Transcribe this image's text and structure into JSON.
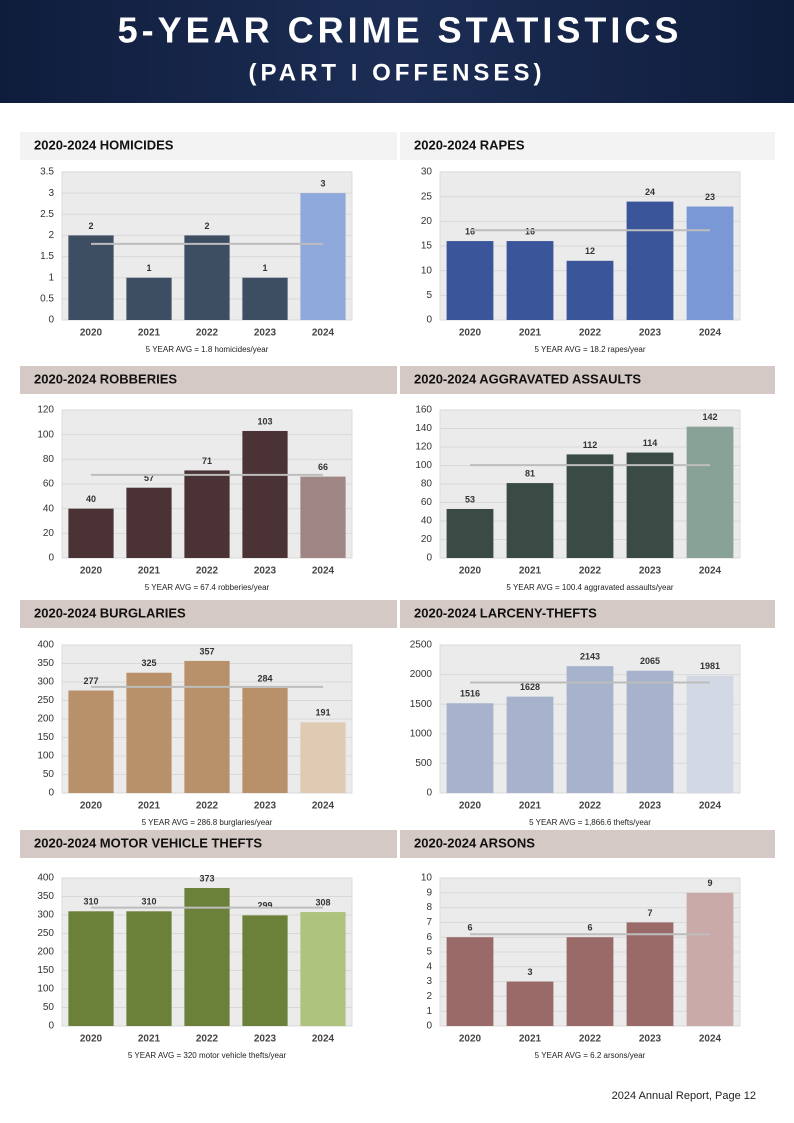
{
  "title": "5-YEAR CRIME STATISTICS",
  "subtitle": "(PART I OFFENSES)",
  "footer": "2024 Annual Report, Page 12",
  "chart_data": [
    {
      "type": "bar",
      "title": "2020-2024 HOMICIDES",
      "categories": [
        "2020",
        "2021",
        "2022",
        "2023",
        "2024"
      ],
      "values": [
        2,
        1,
        2,
        1,
        3
      ],
      "colors": [
        "#3d4e63",
        "#3d4e63",
        "#3d4e63",
        "#3d4e63",
        "#8fa9dc"
      ],
      "ylim": [
        0,
        3.5
      ],
      "yticks": [
        0,
        0.5,
        1,
        1.5,
        2,
        2.5,
        3,
        3.5
      ],
      "average": 1.8,
      "note": "5 YEAR AVG = 1.8 homicides/year"
    },
    {
      "type": "bar",
      "title": "2020-2024 RAPES",
      "categories": [
        "2020",
        "2021",
        "2022",
        "2023",
        "2024"
      ],
      "values": [
        16,
        16,
        12,
        24,
        23
      ],
      "colors": [
        "#3a559a",
        "#3a559a",
        "#3a559a",
        "#3a559a",
        "#7b98d6"
      ],
      "ylim": [
        0,
        30
      ],
      "yticks": [
        0,
        5,
        10,
        15,
        20,
        25,
        30
      ],
      "average": 18.2,
      "note": "5 YEAR AVG = 18.2 rapes/year"
    },
    {
      "type": "bar",
      "title": "2020-2024 ROBBERIES",
      "categories": [
        "2020",
        "2021",
        "2022",
        "2023",
        "2024"
      ],
      "values": [
        40,
        57,
        71,
        103,
        66
      ],
      "colors": [
        "#4a3235",
        "#4a3235",
        "#4a3235",
        "#4a3235",
        "#a08585"
      ],
      "ylim": [
        0,
        120
      ],
      "yticks": [
        0,
        20,
        40,
        60,
        80,
        100,
        120
      ],
      "average": 67.4,
      "note": "5 YEAR AVG = 67.4 robberies/year"
    },
    {
      "type": "bar",
      "title": "2020-2024 AGGRAVATED ASSAULTS",
      "categories": [
        "2020",
        "2021",
        "2022",
        "2023",
        "2024"
      ],
      "values": [
        53,
        81,
        112,
        114,
        142
      ],
      "colors": [
        "#3a4a45",
        "#3a4a45",
        "#3a4a45",
        "#3a4a45",
        "#88a298"
      ],
      "ylim": [
        0,
        160
      ],
      "yticks": [
        0,
        20,
        40,
        60,
        80,
        100,
        120,
        140,
        160
      ],
      "average": 100.4,
      "note": "5 YEAR AVG = 100.4 aggravated assaults/year"
    },
    {
      "type": "bar",
      "title": "2020-2024 BURGLARIES",
      "categories": [
        "2020",
        "2021",
        "2022",
        "2023",
        "2024"
      ],
      "values": [
        277,
        325,
        357,
        284,
        191
      ],
      "colors": [
        "#b8916a",
        "#b8916a",
        "#b8916a",
        "#b8916a",
        "#dfcab3"
      ],
      "ylim": [
        0,
        400
      ],
      "yticks": [
        0,
        50,
        100,
        150,
        200,
        250,
        300,
        350,
        400
      ],
      "average": 286.8,
      "note": "5 YEAR AVG = 286.8 burglaries/year"
    },
    {
      "type": "bar",
      "title": "2020-2024 LARCENY-THEFTS",
      "categories": [
        "2020",
        "2021",
        "2022",
        "2023",
        "2024"
      ],
      "values": [
        1516,
        1628,
        2143,
        2065,
        1981
      ],
      "colors": [
        "#a7b3cc",
        "#a7b3cc",
        "#a7b3cc",
        "#a7b3cc",
        "#d2d8e4"
      ],
      "ylim": [
        0,
        2500
      ],
      "yticks": [
        0,
        500,
        1000,
        1500,
        2000,
        2500
      ],
      "average": 1866.6,
      "note": "5 YEAR AVG = 1,866.6 thefts/year"
    },
    {
      "type": "bar",
      "title": "2020-2024 MOTOR VEHICLE THEFTS",
      "categories": [
        "2020",
        "2021",
        "2022",
        "2023",
        "2024"
      ],
      "values": [
        310,
        310,
        373,
        299,
        308
      ],
      "colors": [
        "#6b8038",
        "#6b8038",
        "#6b8038",
        "#6b8038",
        "#aec47e"
      ],
      "ylim": [
        0,
        400
      ],
      "yticks": [
        0,
        50,
        100,
        150,
        200,
        250,
        300,
        350,
        400
      ],
      "average": 320,
      "note": "5 YEAR AVG = 320 motor vehicle thefts/year"
    },
    {
      "type": "bar",
      "title": "2020-2024 ARSONS",
      "categories": [
        "2020",
        "2021",
        "2022",
        "2023",
        "2024"
      ],
      "values": [
        6,
        3,
        6,
        7,
        9
      ],
      "colors": [
        "#9a6a68",
        "#9a6a68",
        "#9a6a68",
        "#9a6a68",
        "#c9aaa8"
      ],
      "ylim": [
        0,
        10
      ],
      "yticks": [
        0,
        1,
        2,
        3,
        4,
        5,
        6,
        7,
        8,
        9,
        10
      ],
      "average": 6.2,
      "note": "5 YEAR AVG = 6.2 arsons/year"
    }
  ]
}
